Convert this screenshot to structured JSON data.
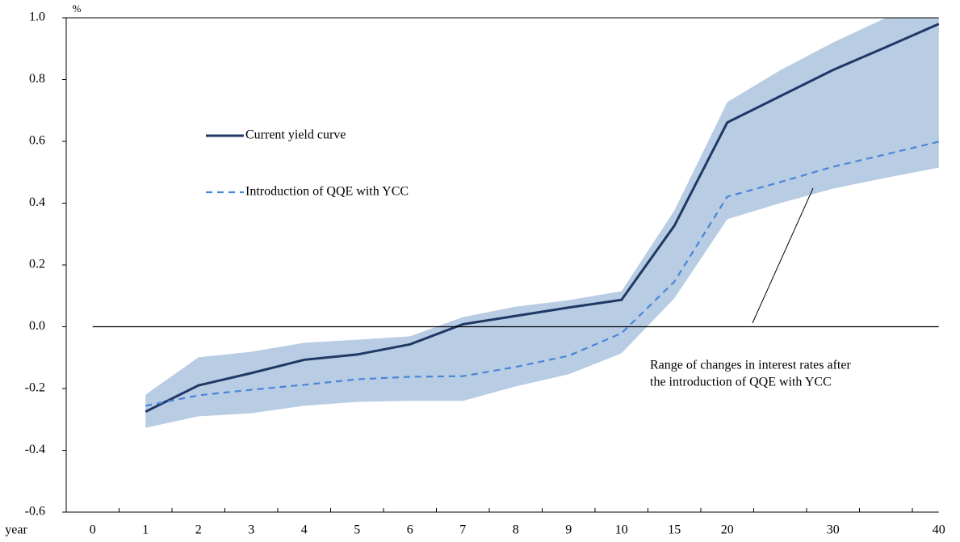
{
  "chart_data": {
    "type": "line",
    "y_unit": "%",
    "x_unit": "year",
    "categories": [
      "0",
      "1",
      "2",
      "3",
      "4",
      "5",
      "6",
      "7",
      "8",
      "9",
      "10",
      "15",
      "20",
      null,
      "30",
      null,
      "40"
    ],
    "series": [
      {
        "name": "Current yield curve",
        "color": "#1f3864",
        "dash": false,
        "values": [
          null,
          -0.275,
          -0.19,
          -0.15,
          -0.107,
          -0.09,
          -0.057,
          0.008,
          0.035,
          0.062,
          0.087,
          0.327,
          0.661,
          0.746,
          0.831,
          0.905,
          0.98
        ]
      },
      {
        "name": "Introduction of QQE with YCC",
        "color": "#4a86d6",
        "dash": true,
        "values": [
          null,
          -0.256,
          -0.222,
          -0.204,
          -0.188,
          -0.17,
          -0.162,
          -0.16,
          -0.13,
          -0.094,
          -0.021,
          0.146,
          0.421,
          0.468,
          0.518,
          0.558,
          0.599
        ]
      }
    ],
    "band": {
      "color": "#b8cce4",
      "upper": [
        null,
        -0.22,
        -0.099,
        -0.081,
        -0.052,
        -0.042,
        -0.031,
        0.031,
        0.065,
        0.086,
        0.115,
        0.376,
        0.727,
        0.83,
        0.92,
        1.0,
        1.06
      ],
      "lower": [
        null,
        -0.327,
        -0.29,
        -0.28,
        -0.256,
        -0.243,
        -0.24,
        -0.24,
        -0.193,
        -0.154,
        -0.086,
        0.092,
        0.348,
        0.4,
        0.447,
        0.482,
        0.515
      ]
    },
    "annotation": [
      "Range of changes in interest rates after",
      "the introduction of QQE with YCC"
    ],
    "ylim": [
      -0.6,
      1.0
    ],
    "yticks": [
      -0.6,
      -0.4,
      -0.2,
      {
        "value": 0,
        "label": "0.0"
      },
      0.2,
      0.4,
      0.6,
      0.8,
      {
        "value": 1,
        "label": "1.0"
      }
    ],
    "grid": false
  }
}
